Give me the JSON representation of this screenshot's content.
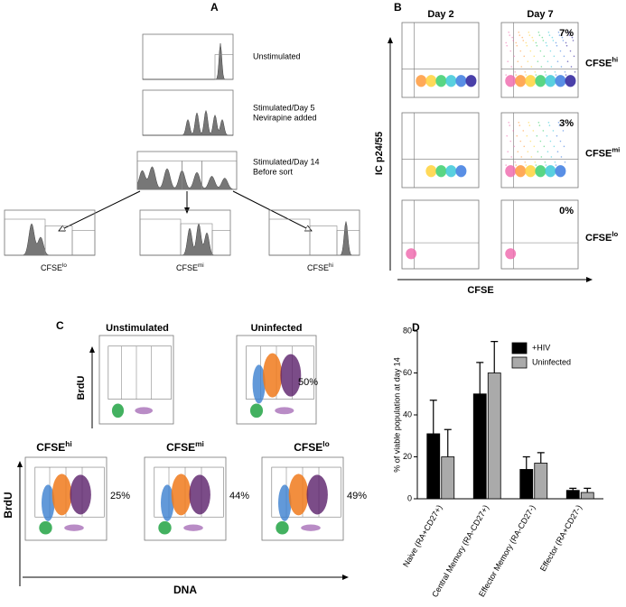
{
  "panel_a": {
    "letter": "A",
    "labels": [
      "Unstimulated",
      "Stimulated/Day 5",
      "Nevirapine added",
      "Stimulated/Day 14",
      "Before sort"
    ],
    "sorted": [
      {
        "text": "CFSE",
        "sup": "lo"
      },
      {
        "text": "CFSE",
        "sup": "mi"
      },
      {
        "text": "CFSE",
        "sup": "hi"
      }
    ]
  },
  "panel_b": {
    "letter": "B",
    "columns": [
      "Day 2",
      "Day 7"
    ],
    "rows": [
      {
        "text": "CFSE",
        "sup": "hi",
        "percent": "7%"
      },
      {
        "text": "CFSE",
        "sup": "mi",
        "percent": "3%"
      },
      {
        "text": "CFSE",
        "sup": "lo",
        "percent": "0%"
      }
    ],
    "y_axis": "IC p24/55",
    "x_axis": "CFSE"
  },
  "panel_c": {
    "letter": "C",
    "top": [
      {
        "title": "Unstimulated"
      },
      {
        "title": "Uninfected",
        "percent": "50%"
      }
    ],
    "bottom": [
      {
        "text": "CFSE",
        "sup": "hi",
        "percent": "25%"
      },
      {
        "text": "CFSE",
        "sup": "mi",
        "percent": "44%"
      },
      {
        "text": "CFSE",
        "sup": "lo",
        "percent": "49%"
      }
    ],
    "y_axis": "BrdU",
    "x_axis": "DNA"
  },
  "chart_data": {
    "type": "bar",
    "letter": "D",
    "ylabel": "% of viable population at day 14",
    "categories": [
      "Naive (RA+CD27+)",
      "Central Memory (RA-CD27+)",
      "Effector Memory (RA-CD27-)",
      "Effector (RA+CD27-)"
    ],
    "series": [
      {
        "name": "+HIV",
        "color": "#000000",
        "values": [
          31,
          50,
          14,
          4
        ],
        "errors": [
          16,
          15,
          6,
          1
        ]
      },
      {
        "name": "Uninfected",
        "color": "#aaaaaa",
        "values": [
          20,
          60,
          17,
          3
        ],
        "errors": [
          13,
          15,
          5,
          2
        ]
      }
    ],
    "ylim": [
      0,
      80
    ],
    "yticks": [
      0,
      20,
      40,
      60,
      80
    ],
    "legend": "upper right"
  }
}
